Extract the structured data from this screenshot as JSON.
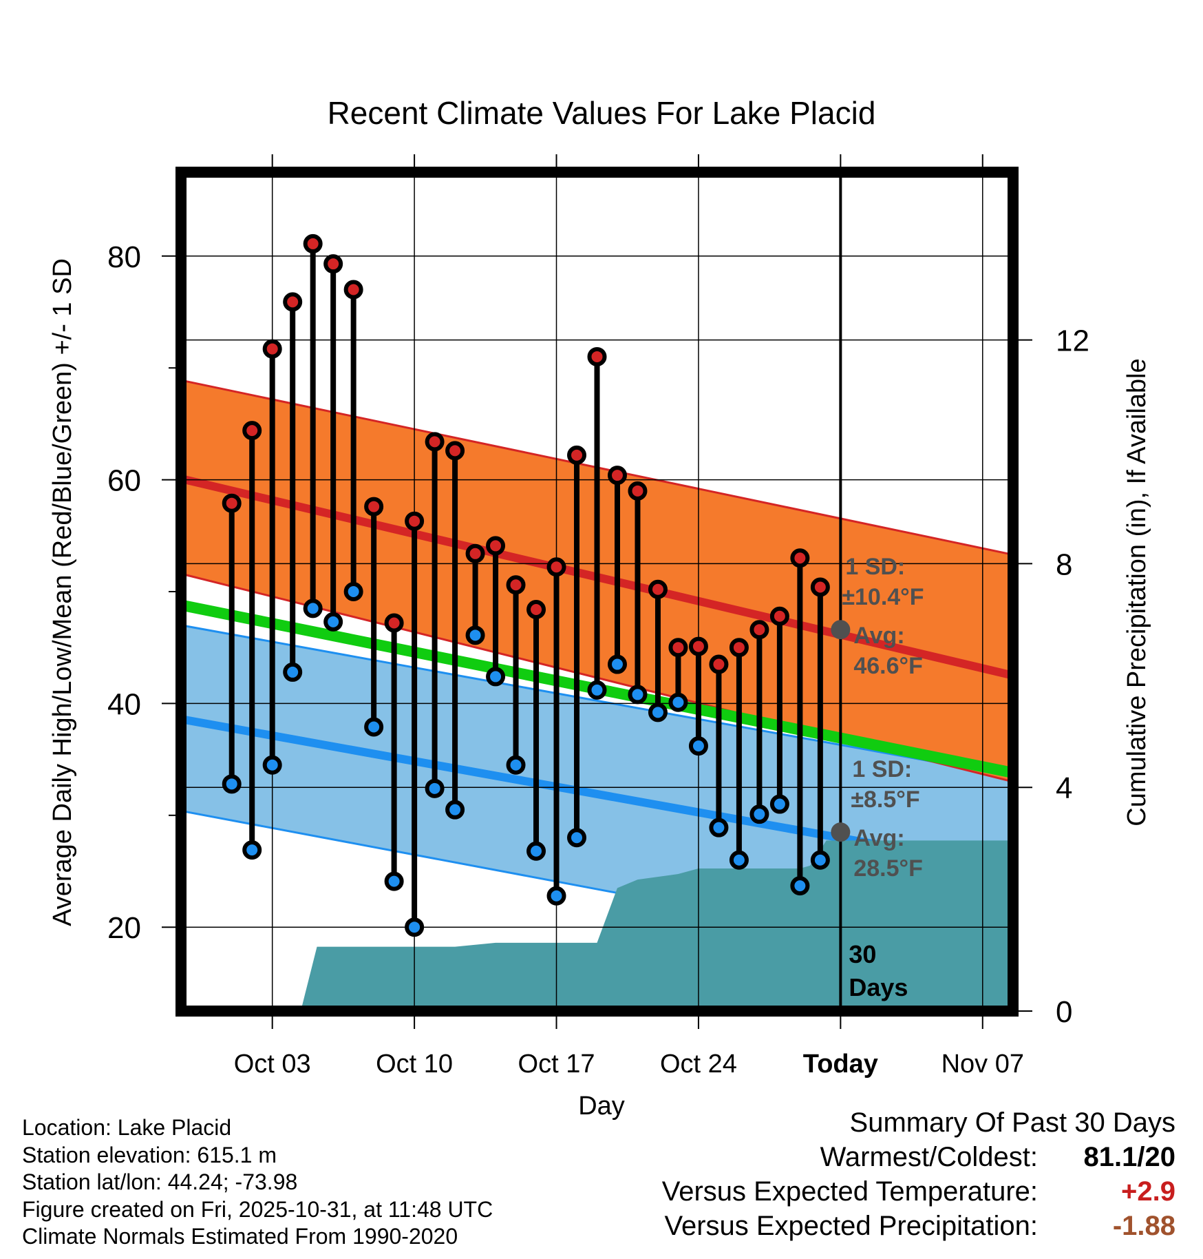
{
  "chart_data": {
    "type": "line",
    "title": "Recent Climate Values For Lake Placid",
    "xlabel": "Day",
    "ylabel": "Average Daily High/Low/Mean (Red/Blue/Green) +/- 1 SD",
    "y2label": "Cumulative Precipitation (in), If Available",
    "xlim_day_offset": [
      -4.5,
      36.5
    ],
    "x_ticks": [
      {
        "offset": 0,
        "label": "Oct 03"
      },
      {
        "offset": 7,
        "label": "Oct 10"
      },
      {
        "offset": 14,
        "label": "Oct 17"
      },
      {
        "offset": 21,
        "label": "Oct 24"
      },
      {
        "offset": 28,
        "label": "Today"
      },
      {
        "offset": 35,
        "label": "Nov 07"
      }
    ],
    "ylim": [
      12.5,
      87.5
    ],
    "y_ticks": [
      20,
      40,
      60,
      80
    ],
    "y2lim": [
      0,
      15
    ],
    "y2_ticks": [
      0,
      4,
      8,
      12
    ],
    "today_offset": 28,
    "period_label_1": "30",
    "period_label_2": "Days",
    "high": {
      "normal_start": 60.1,
      "normal_end": 42.5,
      "sd_upper_start": 68.9,
      "sd_upper_end": 53.3,
      "sd_lower_start": 51.6,
      "sd_lower_end": 33.0,
      "sd_label_1": "1 SD:",
      "sd_label_2": "±10.4°F",
      "avg_label_1": "Avg:",
      "avg_label_2": "46.6°F",
      "today_value": 46.6,
      "color": "#f57a2c",
      "line_color": "#d42525"
    },
    "low": {
      "normal_start": 38.6,
      "normal_end": 25.2,
      "sd_upper_start": 47.0,
      "sd_upper_end": 33.5,
      "sd_lower_start": 30.4,
      "sd_lower_end": 16.4,
      "sd_label_1": "1 SD:",
      "sd_label_2": "±8.5°F",
      "avg_label_1": "Avg:",
      "avg_label_2": "28.5°F",
      "today_value": 28.5,
      "color": "#86c1e7",
      "line_color": "#1e8ff0"
    },
    "mean": {
      "start": 48.8,
      "end": 33.8,
      "color": "#10cc10"
    },
    "days": [
      {
        "offset": -2,
        "high": 57.9,
        "low": 32.8
      },
      {
        "offset": -1,
        "high": 64.4,
        "low": 26.9
      },
      {
        "offset": 0,
        "high": 71.7,
        "low": 34.5
      },
      {
        "offset": 1,
        "high": 75.9,
        "low": 42.8
      },
      {
        "offset": 2,
        "high": 81.1,
        "low": 48.5
      },
      {
        "offset": 3,
        "high": 79.3,
        "low": 47.3
      },
      {
        "offset": 4,
        "high": 77.0,
        "low": 50.0
      },
      {
        "offset": 5,
        "high": 57.6,
        "low": 37.9
      },
      {
        "offset": 6,
        "high": 47.2,
        "low": 24.1
      },
      {
        "offset": 7,
        "high": 56.3,
        "low": 20.0
      },
      {
        "offset": 8,
        "high": 63.4,
        "low": 32.4
      },
      {
        "offset": 9,
        "high": 62.6,
        "low": 30.5
      },
      {
        "offset": 10,
        "high": 53.4,
        "low": 46.1
      },
      {
        "offset": 11,
        "high": 54.1,
        "low": 42.4
      },
      {
        "offset": 12,
        "high": 50.6,
        "low": 34.5
      },
      {
        "offset": 13,
        "high": 48.4,
        "low": 26.8
      },
      {
        "offset": 14,
        "high": 52.2,
        "low": 22.8
      },
      {
        "offset": 15,
        "high": 62.2,
        "low": 28.0
      },
      {
        "offset": 16,
        "high": 71.0,
        "low": 41.2
      },
      {
        "offset": 17,
        "high": 60.4,
        "low": 43.5
      },
      {
        "offset": 18,
        "high": 59.0,
        "low": 40.8
      },
      {
        "offset": 19,
        "high": 50.2,
        "low": 39.2
      },
      {
        "offset": 20,
        "high": 45.0,
        "low": 40.1
      },
      {
        "offset": 21,
        "high": 45.1,
        "low": 36.2
      },
      {
        "offset": 22,
        "high": 43.5,
        "low": 28.9
      },
      {
        "offset": 23,
        "high": 45.0,
        "low": 26.0
      },
      {
        "offset": 24,
        "high": 46.6,
        "low": 30.1
      },
      {
        "offset": 25,
        "high": 47.8,
        "low": 31.0
      },
      {
        "offset": 26,
        "high": 53.0,
        "low": 23.7
      },
      {
        "offset": 27,
        "high": 50.4,
        "low": 26.0
      }
    ],
    "precip": [
      {
        "offset": -4.5,
        "value": 0
      },
      {
        "offset": 1.4,
        "value": 0
      },
      {
        "offset": 2.2,
        "value": 1.15
      },
      {
        "offset": 9.0,
        "value": 1.15
      },
      {
        "offset": 11.0,
        "value": 1.22
      },
      {
        "offset": 16.0,
        "value": 1.22
      },
      {
        "offset": 17.0,
        "value": 2.2
      },
      {
        "offset": 18.0,
        "value": 2.35
      },
      {
        "offset": 20.0,
        "value": 2.45
      },
      {
        "offset": 21.0,
        "value": 2.55
      },
      {
        "offset": 26.0,
        "value": 2.55
      },
      {
        "offset": 26.5,
        "value": 2.6
      },
      {
        "offset": 27.3,
        "value": 3.05
      },
      {
        "offset": 36.5,
        "value": 3.05
      }
    ],
    "precip_color": "#4a9ca5"
  },
  "footer": {
    "location": "Location: Lake Placid",
    "elevation": "Station elevation: 615.1 m",
    "latlon": "Station lat/lon: 44.24; -73.98",
    "created": "Figure created on Fri, 2025-10-31, at 11:48 UTC",
    "normals": "Climate Normals Estimated From 1990-2020"
  },
  "summary": {
    "title": "Summary Of Past 30 Days",
    "warmest_label": "Warmest/Coldest:",
    "warmest_value": "81.1/20",
    "temp_label": "Versus Expected Temperature:",
    "temp_value": "+2.9",
    "temp_color": "#c81e1e",
    "precip_label": "Versus Expected Precipitation:",
    "precip_value": "-1.88",
    "precip_color": "#a0522d"
  }
}
